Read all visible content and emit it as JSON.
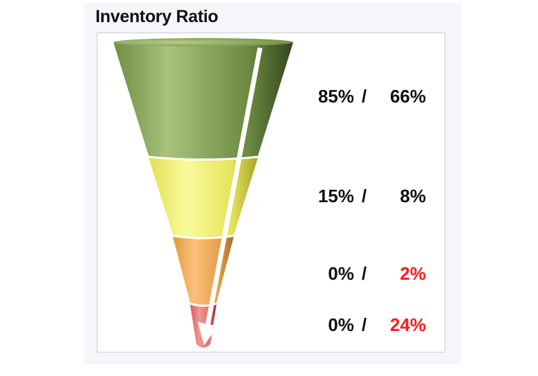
{
  "title": "Inventory Ratio",
  "chart_data": {
    "type": "funnel",
    "title": "Inventory Ratio",
    "stages": [
      {
        "color": "#8aa862",
        "value_a": "85%",
        "value_b": "66%",
        "value_b_color": "#111111"
      },
      {
        "color": "#ecec70",
        "value_a": "15%",
        "value_b": "8%",
        "value_b_color": "#111111"
      },
      {
        "color": "#eaa650",
        "value_a": "0%",
        "value_b": "2%",
        "value_b_color": "#ff1a1a"
      },
      {
        "color": "#e06a6a",
        "value_a": "0%",
        "value_b": "24%",
        "value_b_color": "#ff1a1a"
      }
    ],
    "separator": "/",
    "arrow": "white diagonal arrow from top to bottom of funnel"
  }
}
